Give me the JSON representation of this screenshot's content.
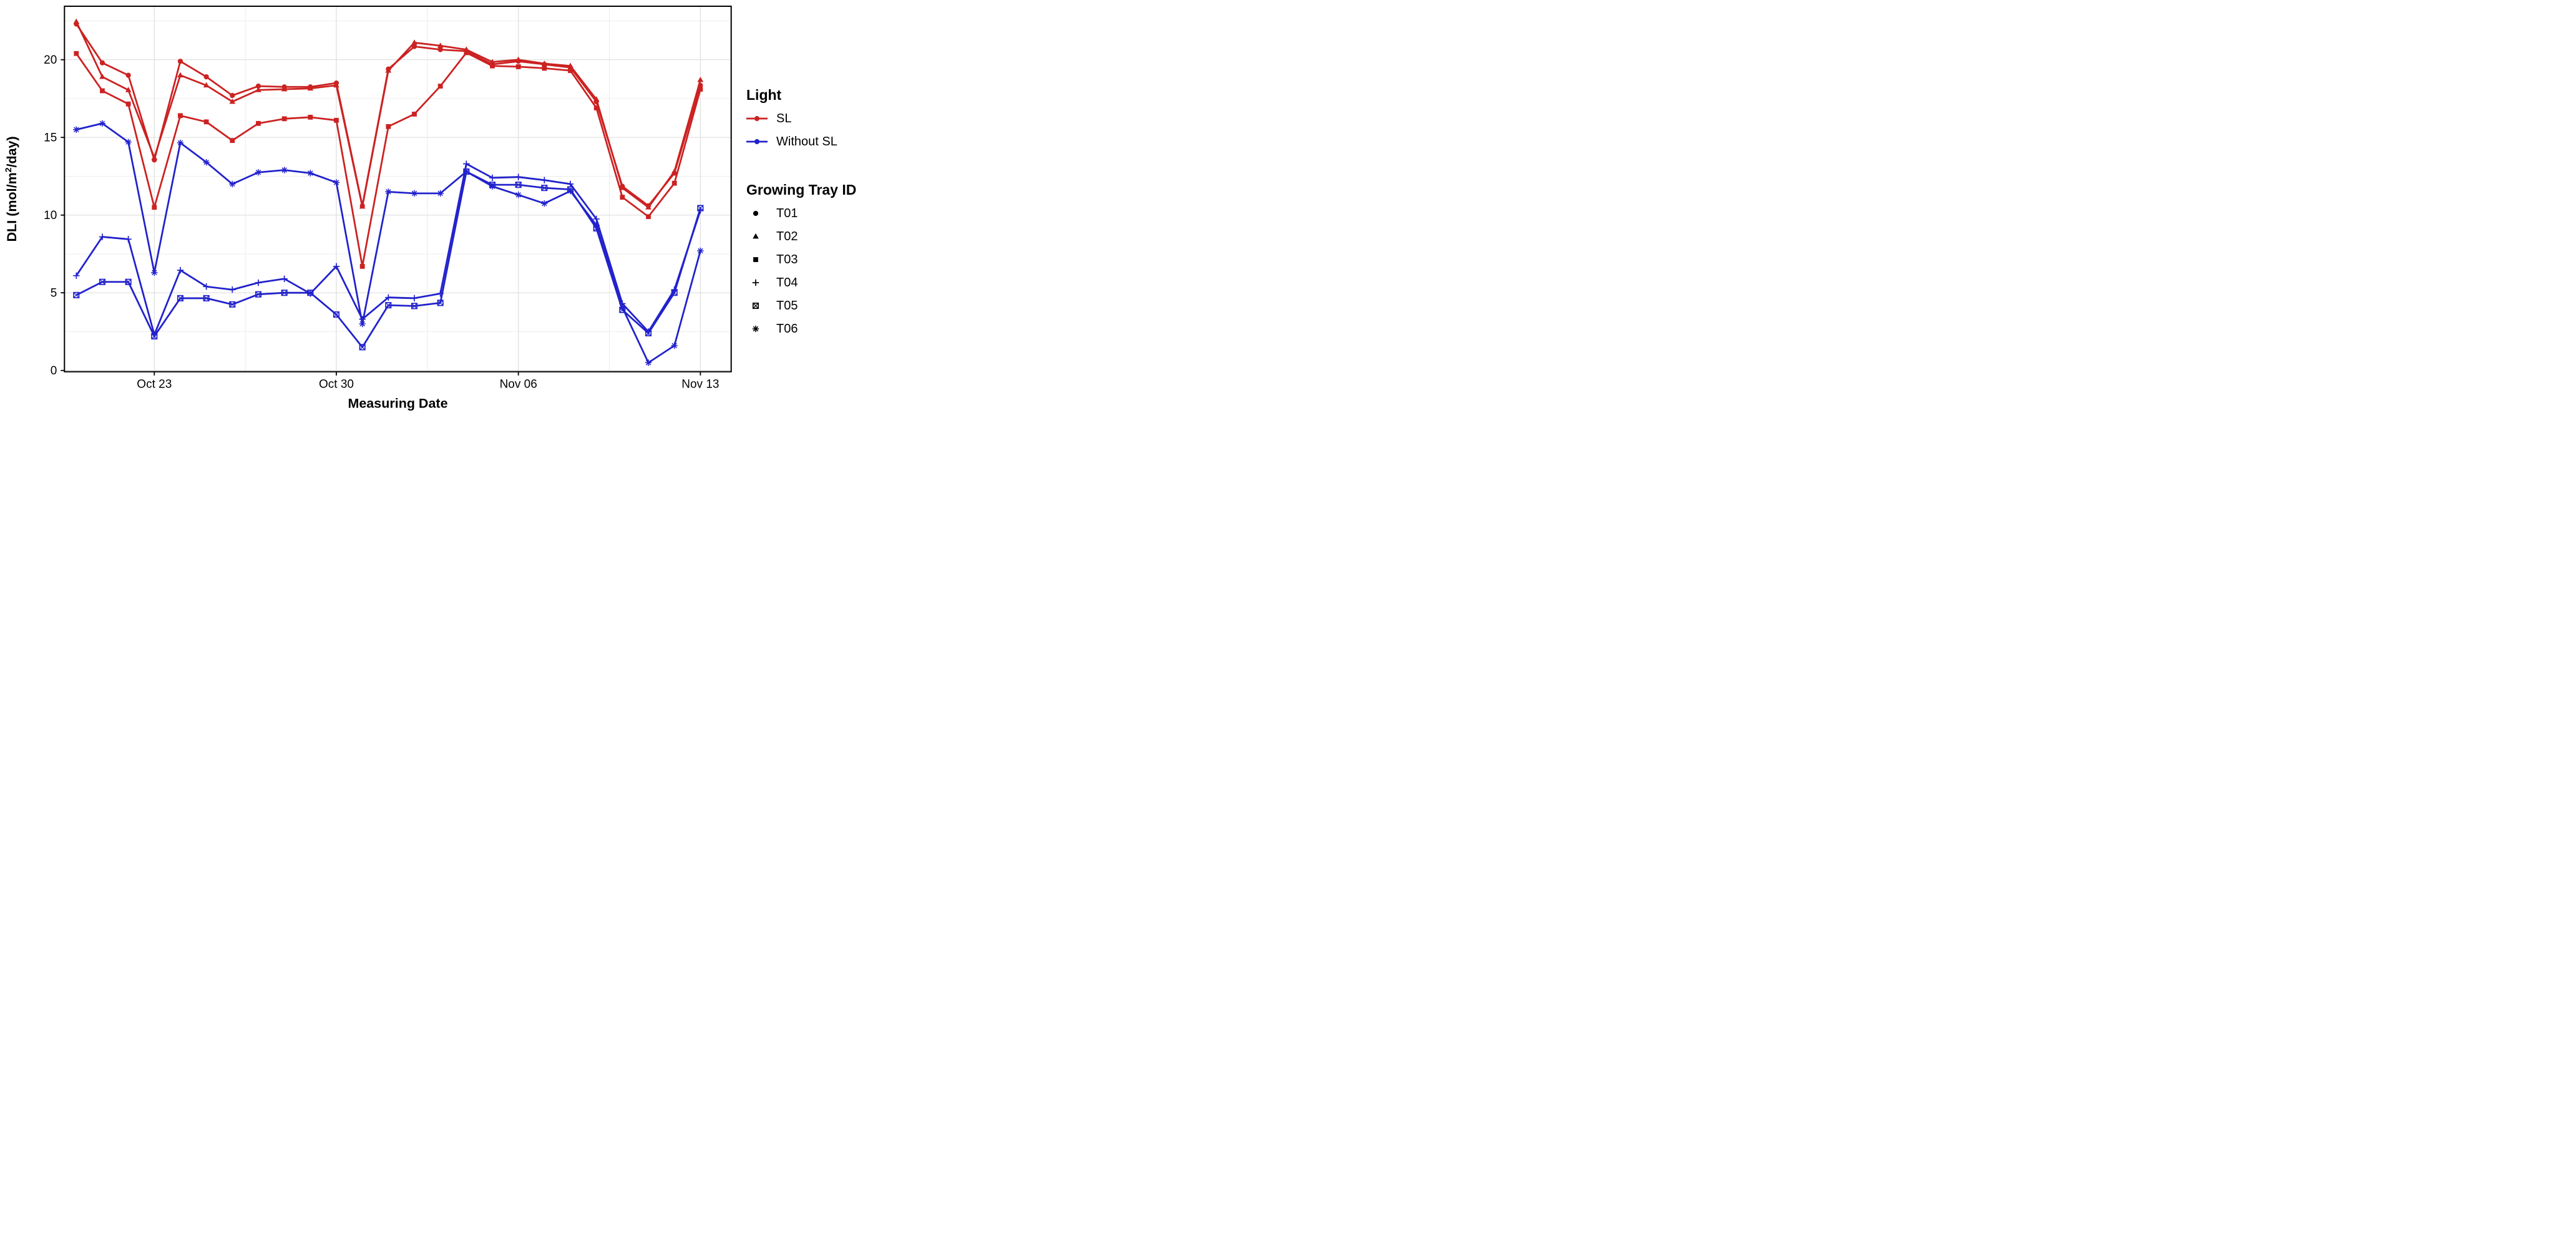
{
  "chart_data": {
    "type": "line",
    "xlabel": "Measuring Date",
    "ylabel_prefix": "DLI (mol/m",
    "ylabel_sup": "2",
    "ylabel_suffix": "/day)",
    "ylim": [
      -0.3,
      23.4
    ],
    "yticks": [
      0,
      5,
      10,
      15,
      20
    ],
    "yticks_minor": [
      2.5,
      7.5,
      12.5,
      17.5,
      22.5
    ],
    "grid": true,
    "legend_position": "right",
    "dates": [
      "Oct 20",
      "Oct 21",
      "Oct 22",
      "Oct 23",
      "Oct 24",
      "Oct 25",
      "Oct 26",
      "Oct 27",
      "Oct 28",
      "Oct 29",
      "Oct 30",
      "Oct 31",
      "Nov 01",
      "Nov 02",
      "Nov 03",
      "Nov 04",
      "Nov 05",
      "Nov 06",
      "Nov 07",
      "Nov 08",
      "Nov 09",
      "Nov 10",
      "Nov 11",
      "Nov 12",
      "Nov 13"
    ],
    "x_major_ticks": [
      {
        "label": "Oct 23",
        "index": 3
      },
      {
        "label": "Oct 30",
        "index": 10
      },
      {
        "label": "Nov 06",
        "index": 17
      },
      {
        "label": "Nov 13",
        "index": 24
      }
    ],
    "x_minor_tick_indices": [
      6.5,
      13.5,
      20.5
    ],
    "colors": {
      "SL": "#cc2222",
      "Without SL": "#2222cc"
    },
    "legend": {
      "light_title": "Light",
      "light_items": [
        {
          "label": "SL",
          "color": "#cc2222"
        },
        {
          "label": "Without SL",
          "color": "#2222cc"
        }
      ],
      "tray_title": "Growing Tray ID",
      "tray_items": [
        {
          "label": "T01",
          "marker": "circle"
        },
        {
          "label": "T02",
          "marker": "triangle"
        },
        {
          "label": "T03",
          "marker": "square"
        },
        {
          "label": "T04",
          "marker": "plus"
        },
        {
          "label": "T05",
          "marker": "boxed-x"
        },
        {
          "label": "T06",
          "marker": "asterisk"
        }
      ]
    },
    "series": [
      {
        "name": "T01",
        "light": "SL",
        "marker": "circle",
        "values": [
          22.3,
          19.8,
          19.0,
          13.55,
          19.9,
          18.9,
          17.7,
          18.3,
          18.25,
          18.25,
          18.5,
          10.6,
          19.4,
          20.85,
          20.65,
          20.55,
          19.7,
          19.9,
          19.7,
          19.5,
          17.3,
          11.85,
          10.6,
          12.7,
          18.35
        ]
      },
      {
        "name": "T02",
        "light": "SL",
        "marker": "triangle",
        "values": [
          22.45,
          18.9,
          18.05,
          13.7,
          19.0,
          18.35,
          17.3,
          18.05,
          18.1,
          18.15,
          18.35,
          10.55,
          19.3,
          21.1,
          20.9,
          20.65,
          19.85,
          20.0,
          19.75,
          19.6,
          17.45,
          11.75,
          10.5,
          12.8,
          18.7
        ]
      },
      {
        "name": "T03",
        "light": "SL",
        "marker": "square",
        "values": [
          20.4,
          18.0,
          17.15,
          10.5,
          16.4,
          16.0,
          14.8,
          15.9,
          16.2,
          16.3,
          16.1,
          6.7,
          15.7,
          16.5,
          18.3,
          20.45,
          19.6,
          19.55,
          19.45,
          19.3,
          16.9,
          11.15,
          9.9,
          12.05,
          18.1
        ]
      },
      {
        "name": "T04",
        "light": "Without SL",
        "marker": "plus",
        "values": [
          6.1,
          8.6,
          8.45,
          2.3,
          6.45,
          5.4,
          5.2,
          5.65,
          5.9,
          4.95,
          6.7,
          3.3,
          4.7,
          4.65,
          4.95,
          13.3,
          12.4,
          12.45,
          12.25,
          12.0,
          9.75,
          4.3,
          2.5,
          5.2,
          10.3
        ]
      },
      {
        "name": "T05",
        "light": "Without SL",
        "marker": "boxed-x",
        "values": [
          4.85,
          5.7,
          5.7,
          2.2,
          4.65,
          4.65,
          4.25,
          4.9,
          5.0,
          5.0,
          3.6,
          1.5,
          4.2,
          4.15,
          4.35,
          12.8,
          11.95,
          11.95,
          11.75,
          11.65,
          9.15,
          3.9,
          2.4,
          5.0,
          10.45
        ]
      },
      {
        "name": "T06",
        "light": "Without SL",
        "marker": "asterisk",
        "values": [
          15.5,
          15.9,
          14.7,
          6.3,
          14.65,
          13.4,
          12.0,
          12.75,
          12.9,
          12.7,
          12.1,
          3.0,
          11.5,
          11.4,
          11.4,
          12.8,
          11.85,
          11.3,
          10.75,
          11.55,
          9.35,
          4.05,
          0.5,
          1.6,
          7.7
        ]
      }
    ]
  }
}
